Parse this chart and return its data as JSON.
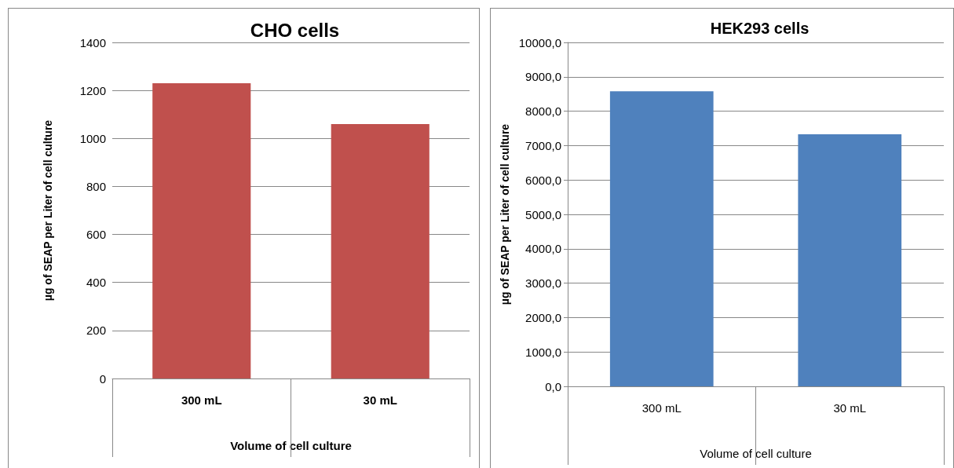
{
  "chart_data": [
    {
      "type": "bar",
      "title": "CHO cells",
      "xlabel": "Volume of cell culture",
      "ylabel": "µg of SEAP per Liter of cell culture",
      "categories": [
        "300 mL",
        "30 mL"
      ],
      "values": [
        1230,
        1060
      ],
      "color": "#c0504d",
      "ylim": [
        0,
        1400
      ],
      "yticks": [
        0,
        200,
        400,
        600,
        800,
        1000,
        1200,
        1400
      ],
      "grid": "y"
    },
    {
      "type": "bar",
      "title": "HEK293 cells",
      "xlabel": "Volume of cell culture",
      "ylabel": "µg of SEAP per Liter of cell culture",
      "categories": [
        "300 mL",
        "30 mL"
      ],
      "values": [
        8580,
        7330
      ],
      "color": "#4f81bd",
      "ylim": [
        0,
        10000
      ],
      "yticks": [
        {
          "value": 0,
          "label": "0,0"
        },
        {
          "value": 1000,
          "label": "1000,0"
        },
        {
          "value": 2000,
          "label": "2000,0"
        },
        {
          "value": 3000,
          "label": "3000,0"
        },
        {
          "value": 4000,
          "label": "4000,0"
        },
        {
          "value": 5000,
          "label": "5000,0"
        },
        {
          "value": 6000,
          "label": "6000,0"
        },
        {
          "value": 7000,
          "label": "7000,0"
        },
        {
          "value": 8000,
          "label": "8000,0"
        },
        {
          "value": 9000,
          "label": "9000,0"
        },
        {
          "value": 10000,
          "label": "10000,0"
        }
      ],
      "grid": "y"
    }
  ]
}
